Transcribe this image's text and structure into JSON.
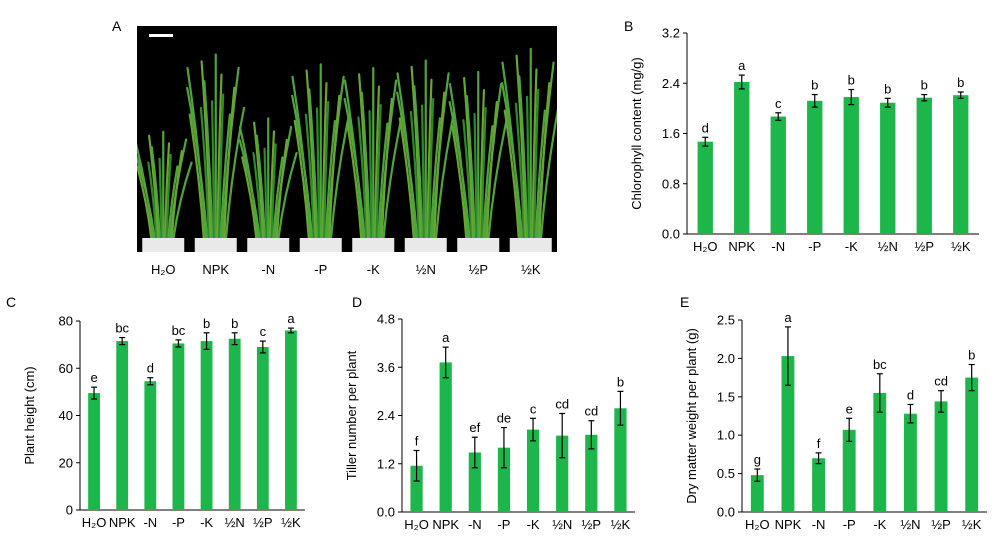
{
  "photo_panel": {
    "letter": "A",
    "labels": [
      "H₂O",
      "NPK",
      "-N",
      "-P",
      "-K",
      "½N",
      "½P",
      "½K"
    ]
  },
  "colors": {
    "bar": "#1db64a",
    "error": "#000000",
    "background": "#000000"
  },
  "chart_data": [
    {
      "panel": "B",
      "type": "bar",
      "categories": [
        "H₂O",
        "NPK",
        "-N",
        "-P",
        "-K",
        "½N",
        "½P",
        "½K"
      ],
      "values": [
        1.47,
        2.42,
        1.87,
        2.12,
        2.18,
        2.09,
        2.17,
        2.21
      ],
      "errors": [
        0.07,
        0.11,
        0.06,
        0.1,
        0.12,
        0.07,
        0.05,
        0.05
      ],
      "letters": [
        "d",
        "a",
        "c",
        "b",
        "b",
        "b",
        "b",
        "b"
      ],
      "ylabel": "Chlorophyll content (mg/g)",
      "ylim": [
        0,
        3.2
      ],
      "yticks": [
        "0.0",
        "0.8",
        "1.6",
        "2.4",
        "3.2"
      ]
    },
    {
      "panel": "C",
      "type": "bar",
      "categories": [
        "H₂O",
        "NPK",
        "-N",
        "-P",
        "-K",
        "½N",
        "½P",
        "½K"
      ],
      "values": [
        49.5,
        71.5,
        54.5,
        70.5,
        71.5,
        72.5,
        69,
        76
      ],
      "errors": [
        2.5,
        1.5,
        1.5,
        1.5,
        3.5,
        2.5,
        2.5,
        1
      ],
      "letters": [
        "e",
        "bc",
        "d",
        "bc",
        "b",
        "b",
        "c",
        "a"
      ],
      "ylabel": "Plant height (cm)",
      "ylim": [
        0,
        80
      ],
      "yticks": [
        "0",
        "20",
        "40",
        "60",
        "80"
      ]
    },
    {
      "panel": "D",
      "type": "bar",
      "categories": [
        "H₂O",
        "NPK",
        "-N",
        "-P",
        "-K",
        "½N",
        "½P",
        "½K"
      ],
      "values": [
        1.15,
        3.72,
        1.48,
        1.6,
        2.05,
        1.9,
        1.92,
        2.58
      ],
      "errors": [
        0.38,
        0.38,
        0.38,
        0.5,
        0.28,
        0.55,
        0.35,
        0.42
      ],
      "letters": [
        "f",
        "a",
        "ef",
        "de",
        "c",
        "cd",
        "cd",
        "b"
      ],
      "ylabel": "Tiller number per plant",
      "ylim": [
        0,
        4.8
      ],
      "yticks": [
        "0.0",
        "1.2",
        "2.4",
        "3.6",
        "4.8"
      ]
    },
    {
      "panel": "E",
      "type": "bar",
      "categories": [
        "H₂O",
        "NPK",
        "-N",
        "-P",
        "-K",
        "½N",
        "½P",
        "½K"
      ],
      "values": [
        0.48,
        2.03,
        0.7,
        1.07,
        1.55,
        1.28,
        1.44,
        1.75
      ],
      "errors": [
        0.08,
        0.38,
        0.07,
        0.15,
        0.25,
        0.12,
        0.14,
        0.17
      ],
      "letters": [
        "g",
        "a",
        "f",
        "e",
        "bc",
        "d",
        "cd",
        "b"
      ],
      "ylabel": "Dry matter weight per plant (g)",
      "ylim": [
        0,
        2.5
      ],
      "yticks": [
        "0.0",
        "0.5",
        "1.0",
        "1.5",
        "2.0",
        "2.5"
      ]
    }
  ]
}
